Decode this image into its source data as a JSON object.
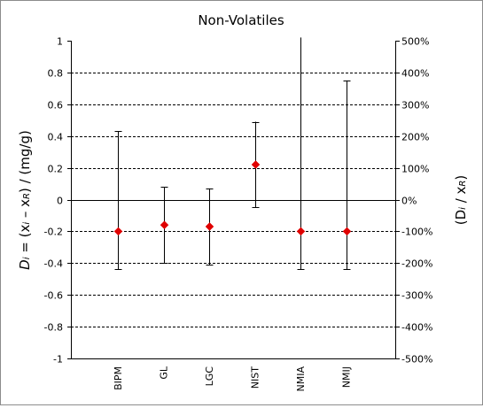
{
  "chart_data": {
    "type": "scatter",
    "title": "Non-Volatiles",
    "ylabel": {
      "parts": [
        "D",
        "i",
        " = (x",
        "i",
        " – x",
        "R",
        ") / (mg/g)"
      ]
    },
    "y2label": {
      "parts": [
        "(D",
        "i",
        " / x",
        "R",
        ")"
      ]
    },
    "ylim": [
      -1,
      1
    ],
    "y_ticks": [
      -1,
      -0.8,
      -0.6,
      -0.4,
      -0.2,
      0,
      0.2,
      0.4,
      0.6,
      0.8,
      1
    ],
    "y_tick_labels": [
      "-1",
      "-0.8",
      "-0.6",
      "-0.4",
      "-0.2",
      "0",
      "0.2",
      "0.4",
      "0.6",
      "0.8",
      "1"
    ],
    "y2_tick_labels": [
      "-500%",
      "-400%",
      "-300%",
      "-200%",
      "-100%",
      "0%",
      "100%",
      "200%",
      "300%",
      "400%",
      "500%"
    ],
    "grid": "horizontal dashed",
    "categories": [
      "BIPM",
      "GL",
      "LGC",
      "NIST",
      "NMIA",
      "NMIJ"
    ],
    "values": [
      -0.2,
      -0.16,
      -0.17,
      0.22,
      -0.2,
      -0.2
    ],
    "error_low": [
      -0.44,
      -0.4,
      -0.41,
      -0.05,
      -0.44,
      -0.44
    ],
    "error_high": [
      0.43,
      0.08,
      0.07,
      0.49,
      1.02,
      0.75
    ],
    "marker_color": "#e00000"
  }
}
